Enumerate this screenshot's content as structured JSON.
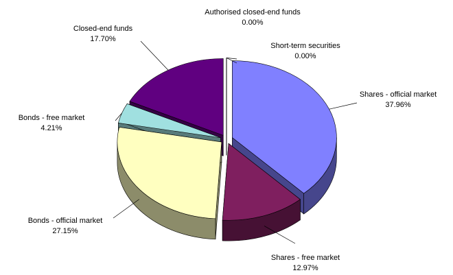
{
  "chart_data": {
    "type": "pie3d",
    "categories": [
      "Shares - official market",
      "Shares - free market",
      "Bonds - official market",
      "Bonds - free market",
      "Closed-end funds",
      "Authorised closed-end funds",
      "Short-term securities"
    ],
    "values": [
      37.96,
      12.97,
      27.15,
      4.21,
      17.7,
      0.0,
      0.0
    ],
    "value_labels": [
      "37.96%",
      "12.97%",
      "27.15%",
      "4.21%",
      "17.70%",
      "0.00%",
      "0.00%"
    ],
    "colors": [
      "#8080ff",
      "#7f1f5f",
      "#ffffc0",
      "#a0e0e0",
      "#600080",
      "#ff8080",
      "#0070c0"
    ]
  }
}
